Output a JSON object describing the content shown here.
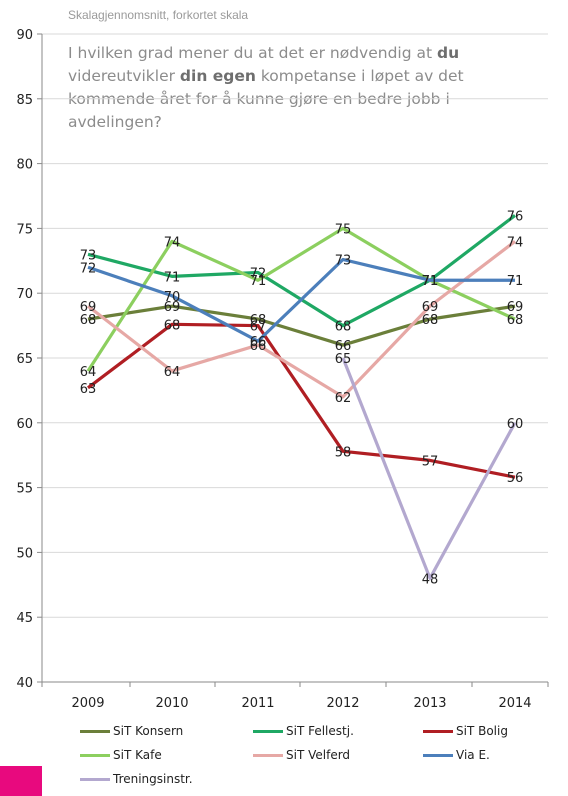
{
  "header": {
    "subtitle": "Skalagjennomsnitt, forkortet skala",
    "question_parts": [
      {
        "text": "I hvilken grad mener du at det er nødvendig at ",
        "bold": false
      },
      {
        "text": "du",
        "bold": true
      },
      {
        "text": " videreutvikler ",
        "bold": false
      },
      {
        "text": "din egen",
        "bold": true
      },
      {
        "text": " kompetanse i løpet av det kommende  året for å kunne gjøre en bedre jobb i avdelingen?",
        "bold": false
      }
    ]
  },
  "chart_data": {
    "type": "line",
    "title": "",
    "xlabel": "",
    "ylabel": "",
    "categories": [
      "2009",
      "2010",
      "2011",
      "2012",
      "2013",
      "2014"
    ],
    "ylim": [
      40,
      90
    ],
    "yticks": [
      40,
      45,
      50,
      55,
      60,
      65,
      70,
      75,
      80,
      85,
      90
    ],
    "grid": "horizontal",
    "legend_position": "bottom",
    "series": [
      {
        "name": "SiT Konsern",
        "color": "#6b7f3a",
        "values": [
          68,
          69,
          68,
          66,
          68,
          69
        ],
        "labels": [
          "68",
          "69",
          "68",
          "66",
          "68",
          "69"
        ]
      },
      {
        "name": "SiT Fellestj.",
        "color": "#1fa864",
        "values": [
          73,
          71.3,
          71.6,
          67.5,
          71,
          76
        ],
        "labels": [
          "73",
          "71",
          "72",
          "68",
          "71",
          "76"
        ]
      },
      {
        "name": "SiT Bolig",
        "color": "#b01e23",
        "values": [
          62.7,
          67.6,
          67.5,
          57.8,
          57.1,
          55.8
        ],
        "labels": [
          "63",
          "68",
          "67",
          "58",
          "57",
          "56"
        ]
      },
      {
        "name": "SiT Kafe",
        "color": "#8ccf5f",
        "values": [
          64,
          74,
          71,
          75,
          71,
          68
        ],
        "labels": [
          "64",
          "74",
          "71",
          "75",
          "71",
          "68"
        ]
      },
      {
        "name": "SiT Velferd",
        "color": "#e6a8a5",
        "values": [
          69,
          64,
          66,
          62,
          69,
          74
        ],
        "labels": [
          "69",
          "64",
          "66",
          "62",
          "69",
          "74"
        ]
      },
      {
        "name": "Via E.",
        "color": "#4c7fbb",
        "values": [
          72,
          69.8,
          66.3,
          72.6,
          71,
          71
        ],
        "labels": [
          "72",
          "70",
          "66",
          "73",
          "71",
          "71"
        ]
      },
      {
        "name": "Treningsinstr.",
        "color": "#b3a8cf",
        "values": [
          null,
          null,
          null,
          65,
          48,
          60
        ],
        "labels": [
          "",
          "",
          "",
          "65",
          "48",
          "60"
        ]
      }
    ]
  }
}
